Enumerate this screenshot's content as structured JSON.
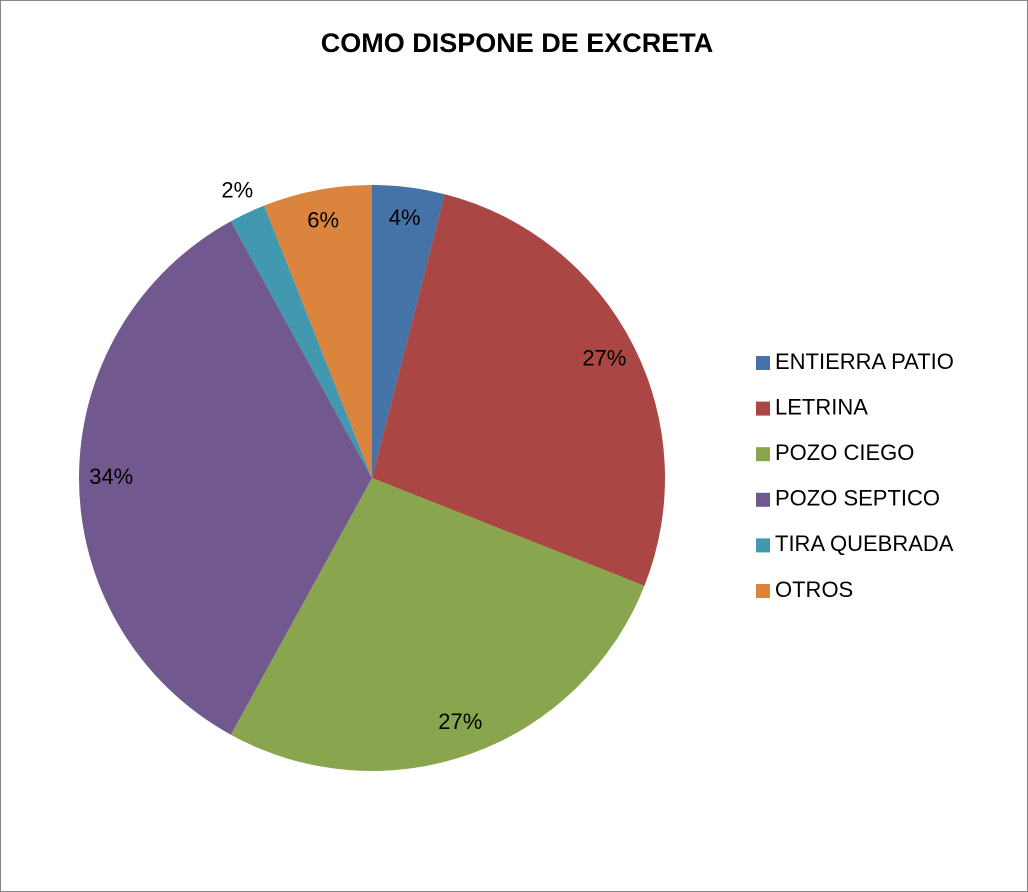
{
  "chart_data": {
    "type": "pie",
    "title": "COMO DISPONE DE EXCRETA",
    "categories": [
      "ENTIERRA PATIO",
      "LETRINA",
      "POZO CIEGO",
      "POZO SEPTICO",
      "TIRA QUEBRADA",
      "OTROS"
    ],
    "values": [
      4,
      27,
      27,
      34,
      2,
      6
    ],
    "value_labels": [
      "4%",
      "27%",
      "27%",
      "34%",
      "2%",
      "6%"
    ],
    "colors": [
      "#4572a7",
      "#aa4643",
      "#89a54e",
      "#71588f",
      "#4198af",
      "#db843d"
    ],
    "legend": "right"
  }
}
